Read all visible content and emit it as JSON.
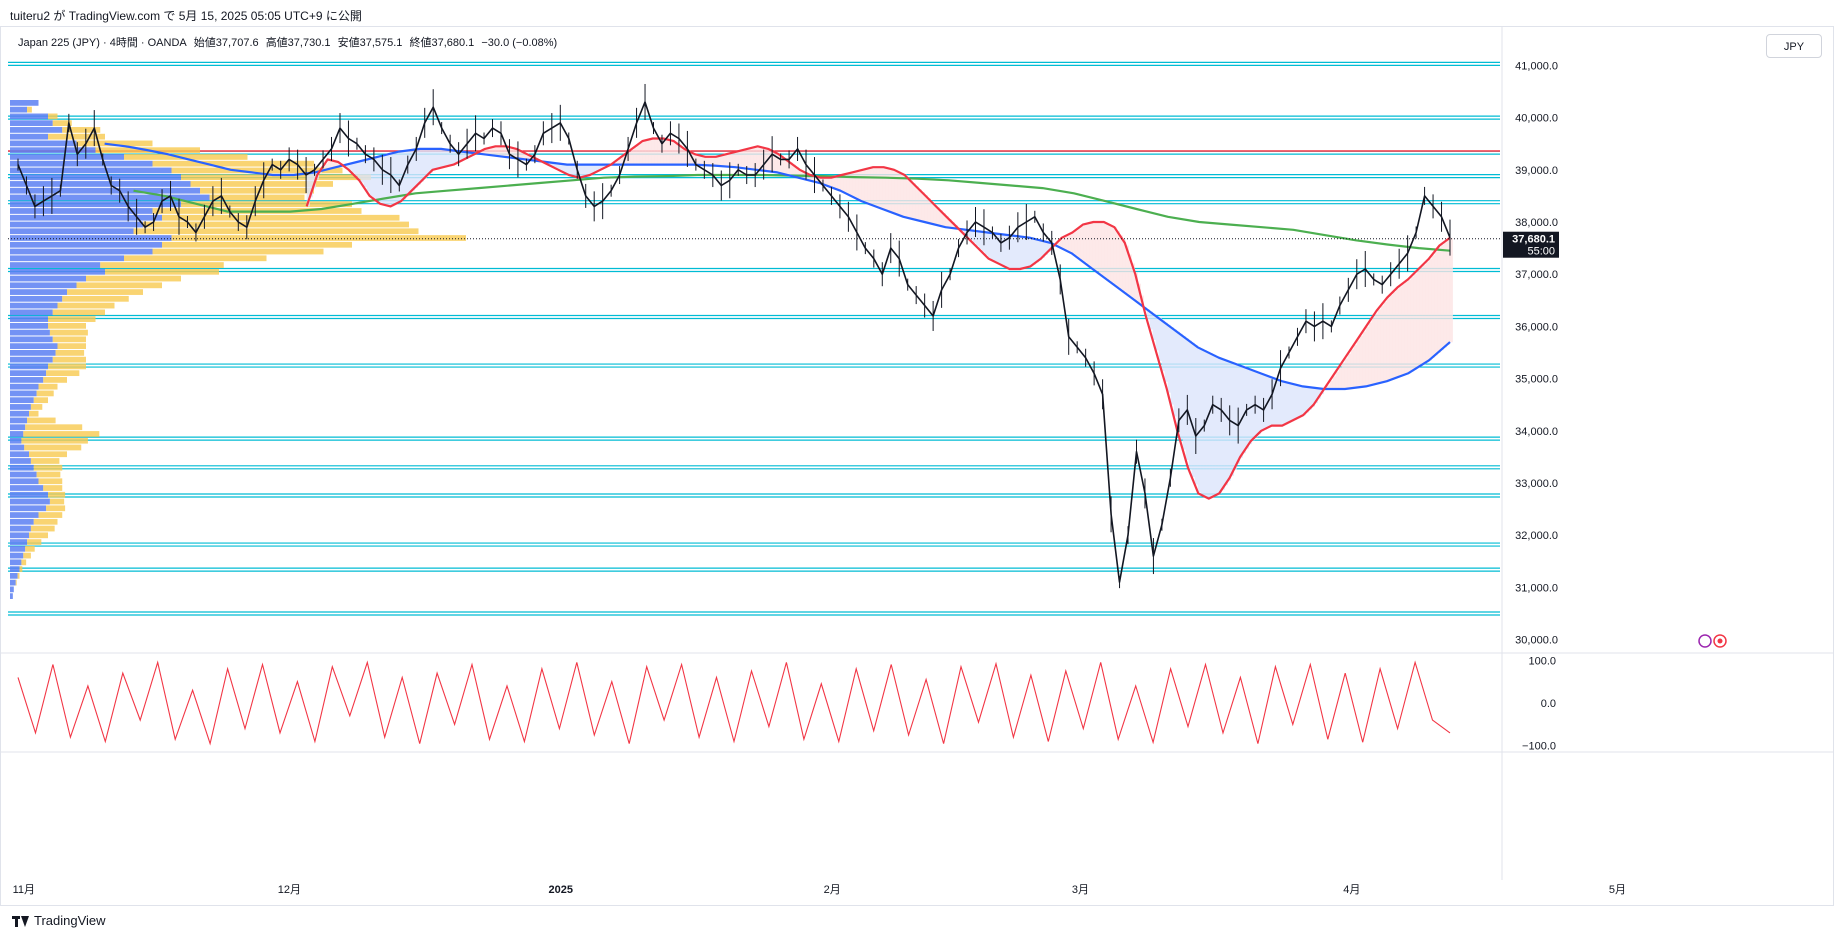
{
  "caption": "tuiteru2 が TradingView.com で 5月 15, 2025 05:05 UTC+9 に公開",
  "legend": {
    "symbol": "Japan 225 (JPY) · 4時間 · OANDA",
    "open": "始値37,707.6",
    "high": "高値37,730.1",
    "low": "安値37,575.1",
    "close": "終値37,680.1",
    "change": "−30.0 (−0.08%)"
  },
  "currency_button": "JPY",
  "footer_brand": "TradingView",
  "colors": {
    "price": "#131722",
    "ema_fast": "#f23645",
    "ma_mid": "#2962ff",
    "ma_long": "#4caf50",
    "hline": "#00bcd4",
    "resistance": "#f23645",
    "vp_up": "#5b7ff2",
    "vp_down": "#f7c94f",
    "oscillator": "#f23645",
    "fill_bull": "#fde4e4",
    "fill_bear": "#dce5fb"
  },
  "chart_data": {
    "type": "line",
    "price_axis": {
      "min": 29800,
      "max": 41200,
      "ticks": [
        "41,000.0",
        "40,000.0",
        "39,000.0",
        "38,000.0",
        "37,000.0",
        "36,000.0",
        "35,000.0",
        "34,000.0",
        "33,000.0",
        "32,000.0",
        "31,000.0",
        "30,000.0"
      ],
      "tick_values": [
        41000,
        40000,
        39000,
        38000,
        37000,
        36000,
        35000,
        34000,
        33000,
        32000,
        31000,
        30000
      ]
    },
    "time_axis": {
      "labels": [
        "11月",
        "12月",
        "2025",
        "2月",
        "3月",
        "4月",
        "5月"
      ],
      "label_index": [
        1,
        47,
        94,
        141,
        184,
        231,
        277
      ]
    },
    "last_price": {
      "value": 37680.1,
      "label": "37,680.1",
      "countdown": "55:00"
    },
    "horizontal_levels": [
      41030,
      40000,
      39330,
      38880,
      38380,
      37080,
      36180,
      35250,
      33850,
      33300,
      32760,
      31820,
      31340,
      30500
    ],
    "resistance_level": 39360,
    "series": [
      {
        "role": "price",
        "values": [
          39100,
          38700,
          38300,
          38400,
          38500,
          38600,
          39900,
          39300,
          39500,
          39800,
          39200,
          38700,
          38600,
          38300,
          38100,
          37900,
          38000,
          38400,
          38500,
          38100,
          38000,
          37800,
          38100,
          38400,
          38500,
          38200,
          38000,
          37900,
          38400,
          38800,
          39100,
          39000,
          39200,
          39100,
          38900,
          39000,
          39200,
          39400,
          39800,
          39600,
          39500,
          39300,
          39200,
          39000,
          38900,
          38700,
          39100,
          39400,
          39900,
          40200,
          39800,
          39500,
          39300,
          39500,
          39700,
          39600,
          39800,
          39700,
          39300,
          39200,
          39100,
          39300,
          39700,
          39800,
          39900,
          39600,
          39000,
          38500,
          38300,
          38400,
          38600,
          38900,
          39400,
          39900,
          40300,
          39800,
          39500,
          39700,
          39600,
          39400,
          39100,
          39000,
          38900,
          38700,
          38800,
          39000,
          38900,
          38900,
          39100,
          39300,
          39200,
          39200,
          39400,
          39100,
          38900,
          38700,
          38500,
          38300,
          38100,
          37800,
          37500,
          37300,
          37000,
          37500,
          37300,
          36800,
          36600,
          36400,
          36200,
          36700,
          37000,
          37500,
          37800,
          38000,
          37900,
          37800,
          37600,
          37700,
          37900,
          38000,
          38100,
          37800,
          37600,
          36900,
          35800,
          35600,
          35400,
          35100,
          34700,
          32400,
          31100,
          32000,
          33600,
          32800,
          31600,
          32200,
          33100,
          34200,
          34400,
          33900,
          34100,
          34500,
          34400,
          34200,
          34100,
          34400,
          34500,
          34400,
          34700,
          35200,
          35500,
          35800,
          36100,
          36000,
          36100,
          36000,
          36400,
          36700,
          37000,
          37100,
          36900,
          36800,
          37000,
          37200,
          37400,
          37800,
          38500,
          38300,
          38100,
          37700
        ],
        "idx_span": [
          0,
          248
        ]
      },
      {
        "role": "ema_fast",
        "values": [
          38300,
          38900,
          39200,
          39150,
          39000,
          38800,
          38500,
          38350,
          38300,
          38400,
          38600,
          38800,
          39000,
          39050,
          39100,
          39200,
          39300,
          39400,
          39450,
          39450,
          39400,
          39300,
          39200,
          39100,
          39000,
          38900,
          38850,
          38900,
          39000,
          39100,
          39250,
          39400,
          39550,
          39600,
          39600,
          39550,
          39400,
          39300,
          39250,
          39250,
          39300,
          39350,
          39400,
          39450,
          39400,
          39300,
          39150,
          39000,
          38900,
          38850,
          38850,
          38900,
          38950,
          39000,
          39050,
          39050,
          39000,
          38900,
          38700,
          38500,
          38300,
          38100,
          37900,
          37700,
          37500,
          37300,
          37200,
          37100,
          37100,
          37150,
          37300,
          37500,
          37700,
          37800,
          37950,
          38000,
          38000,
          37900,
          37600,
          37000,
          36200,
          35500,
          34800,
          34000,
          33300,
          32800,
          32700,
          32800,
          33100,
          33500,
          33800,
          34000,
          34100,
          34100,
          34200,
          34300,
          34500,
          34800,
          35100,
          35400,
          35700,
          36000,
          36300,
          36550,
          36750,
          36900,
          37100,
          37300,
          37550,
          37700
        ],
        "idx_span": [
          50,
          248
        ]
      },
      {
        "role": "ma_mid",
        "values": [
          39500,
          39450,
          39380,
          39300,
          39200,
          39100,
          39000,
          38950,
          38900,
          38900,
          38950,
          39050,
          39150,
          39250,
          39350,
          39400,
          39400,
          39350,
          39300,
          39250,
          39200,
          39150,
          39100,
          39100,
          39100,
          39100,
          39100,
          39100,
          39100,
          39080,
          39050,
          39000,
          38950,
          38850,
          38750,
          38600,
          38400,
          38250,
          38100,
          38000,
          37900,
          37850,
          37800,
          37750,
          37700,
          37600,
          37400,
          37100,
          36800,
          36500,
          36200,
          35900,
          35600,
          35400,
          35250,
          35100,
          34950,
          34850,
          34800,
          34800,
          34850,
          34950,
          35100,
          35350,
          35700
        ],
        "idx_span": [
          15,
          248
        ]
      },
      {
        "role": "ma_long",
        "values": [
          38600,
          38500,
          38350,
          38200,
          38200,
          38200,
          38250,
          38350,
          38450,
          38550,
          38600,
          38650,
          38700,
          38750,
          38800,
          38850,
          38870,
          38880,
          38900,
          38900,
          38900,
          38890,
          38880,
          38860,
          38850,
          38830,
          38800,
          38750,
          38700,
          38650,
          38550,
          38400,
          38250,
          38100,
          38000,
          37950,
          37900,
          37850,
          37750,
          37650,
          37570,
          37500,
          37450
        ],
        "idx_span": [
          20,
          248
        ]
      },
      {
        "role": "oscillator",
        "values": [
          60,
          -70,
          90,
          -80,
          40,
          -90,
          70,
          -40,
          95,
          -85,
          30,
          -95,
          80,
          -60,
          90,
          -70,
          50,
          -90,
          85,
          -30,
          95,
          -80,
          60,
          -95,
          70,
          -50,
          90,
          -85,
          40,
          -90,
          80,
          -60,
          95,
          -75,
          50,
          -95,
          85,
          -40,
          90,
          -80,
          60,
          -90,
          75,
          -55,
          95,
          -85,
          45,
          -90,
          80,
          -65,
          90,
          -75,
          55,
          -95,
          85,
          -45,
          92,
          -80,
          65,
          -90,
          75,
          -60,
          95,
          -85,
          40,
          -92,
          80,
          -55,
          90,
          -70,
          60,
          -95,
          85,
          -50,
          90,
          -85,
          70,
          -92,
          80,
          -60,
          95,
          -40,
          -70
        ],
        "idx_span": [
          0,
          248
        ]
      }
    ],
    "oscillator_axis": {
      "ticks": [
        "100.0",
        "0.0",
        "−100.0"
      ],
      "tick_values": [
        100,
        0,
        -100
      ]
    },
    "volume_profile": {
      "up": [
        30,
        18,
        40,
        45,
        55,
        40,
        70,
        90,
        120,
        150,
        170,
        180,
        190,
        200,
        210,
        180,
        150,
        160,
        140,
        130,
        170,
        160,
        150,
        120,
        95,
        100,
        80,
        70,
        60,
        55,
        50,
        45,
        40,
        40,
        42,
        45,
        50,
        48,
        45,
        40,
        38,
        35,
        30,
        28,
        25,
        22,
        20,
        18,
        16,
        14,
        12,
        15,
        20,
        22,
        25,
        28,
        30,
        35,
        40,
        42,
        38,
        30,
        25,
        22,
        20,
        18,
        16,
        14,
        12,
        10,
        8,
        6,
        4,
        3
      ],
      "down": [
        0,
        5,
        10,
        20,
        40,
        60,
        80,
        110,
        130,
        170,
        180,
        200,
        150,
        120,
        100,
        180,
        220,
        250,
        280,
        300,
        310,
        200,
        180,
        150,
        130,
        120,
        100,
        90,
        80,
        70,
        60,
        55,
        50,
        40,
        40,
        35,
        30,
        30,
        35,
        40,
        35,
        25,
        20,
        18,
        15,
        12,
        10,
        30,
        60,
        80,
        70,
        60,
        40,
        30,
        30,
        25,
        25,
        20,
        18,
        15,
        20,
        25,
        25,
        25,
        20,
        15,
        10,
        8,
        5,
        3,
        2,
        1,
        0,
        0
      ]
    }
  }
}
